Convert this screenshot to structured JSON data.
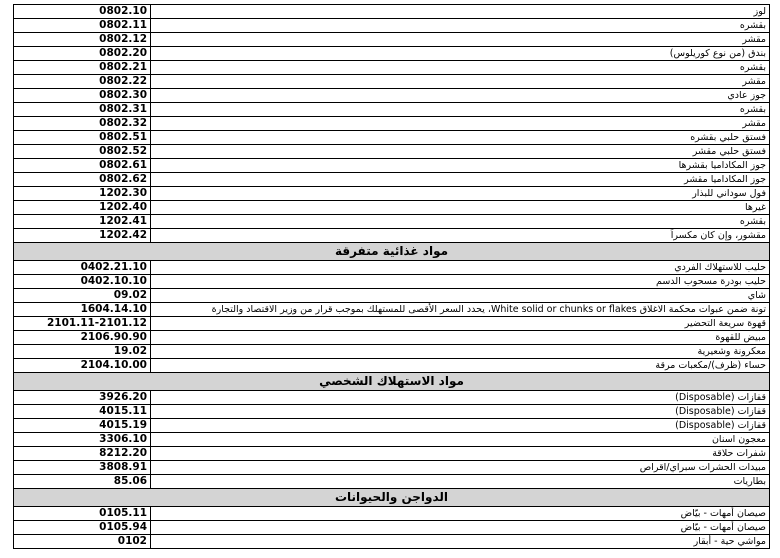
{
  "sections": [
    {
      "rows": [
        {
          "code": "0802.10",
          "description": "لوز"
        },
        {
          "code": "0802.11",
          "description": "بقشره"
        },
        {
          "code": "0802.12",
          "description": "مقشر"
        },
        {
          "code": "0802.20",
          "description": "بندق (من نوع كوريلوس)"
        },
        {
          "code": "0802.21",
          "description": "بقشره"
        },
        {
          "code": "0802.22",
          "description": "مقشر"
        },
        {
          "code": "0802.30",
          "description": "جوز عادي"
        },
        {
          "code": "0802.31",
          "description": "بقشره"
        },
        {
          "code": "0802.32",
          "description": "مقشر"
        },
        {
          "code": "0802.51",
          "description": "فستق حلبي بقشره"
        },
        {
          "code": "0802.52",
          "description": "فستق حلبي مقشر"
        },
        {
          "code": "0802.61",
          "description": "جوز المكاداميا بقشرها"
        },
        {
          "code": "0802.62",
          "description": "جوز المكاداميا مقشر"
        },
        {
          "code": "1202.30",
          "description": "فول سوداني للبذار"
        },
        {
          "code": "1202.40",
          "description": "غيرها"
        },
        {
          "code": "1202.41",
          "description": "بقشره"
        },
        {
          "code": "1202.42",
          "description": "مقشور، وإن كان مكسراً"
        }
      ]
    },
    {
      "title": "مواد غذائية متفرقة",
      "rows": [
        {
          "code": "0402.21.10",
          "description": "حليب للاستهلاك الفردي"
        },
        {
          "code": "0402.10.10",
          "description": "حليب بودرة مسحوب الدسم"
        },
        {
          "code": "09.02",
          "description": "شاي"
        },
        {
          "code": "1604.14.10",
          "description": "تونة ضمن عبوات محكمة الاغلاق White solid or chunks or flakes، يحدد السعر الأقصى للمستهلك بموجب قرار من وزير الاقتصاد والتجارة"
        },
        {
          "code": "2101.11-2101.12",
          "description": "قهوة سريعة التحضير"
        },
        {
          "code": "2106.90.90",
          "description": "مبيض للقهوة"
        },
        {
          "code": "19.02",
          "description": "معكرونة وشعيرية"
        },
        {
          "code": "2104.10.00",
          "description": "حساء (ظرف)/مكعبات مرقة"
        }
      ]
    },
    {
      "title": "مواد الاستهلاك الشخصي",
      "rows": [
        {
          "code": "3926.20",
          "description": "قفازات (Disposable)"
        },
        {
          "code": "4015.11",
          "description": "قفازات (Disposable)"
        },
        {
          "code": "4015.19",
          "description": "قفازات (Disposable)"
        },
        {
          "code": "3306.10",
          "description": "معجون اسنان"
        },
        {
          "code": "8212.20",
          "description": "شفرات حلاقة"
        },
        {
          "code": "3808.91",
          "description": "مبيدات الحشرات سبراي/اقراص"
        },
        {
          "code": "85.06",
          "description": "بطاريات"
        }
      ]
    },
    {
      "title": "الدواجن والحيوانات",
      "rows": [
        {
          "code": "0105.11",
          "description": "صيصان أمهات - بيّاض"
        },
        {
          "code": "0105.94",
          "description": "صيصان أمهات - بيّاض"
        },
        {
          "code": "0102",
          "description": "مواشي حية - أبقار"
        }
      ]
    }
  ]
}
